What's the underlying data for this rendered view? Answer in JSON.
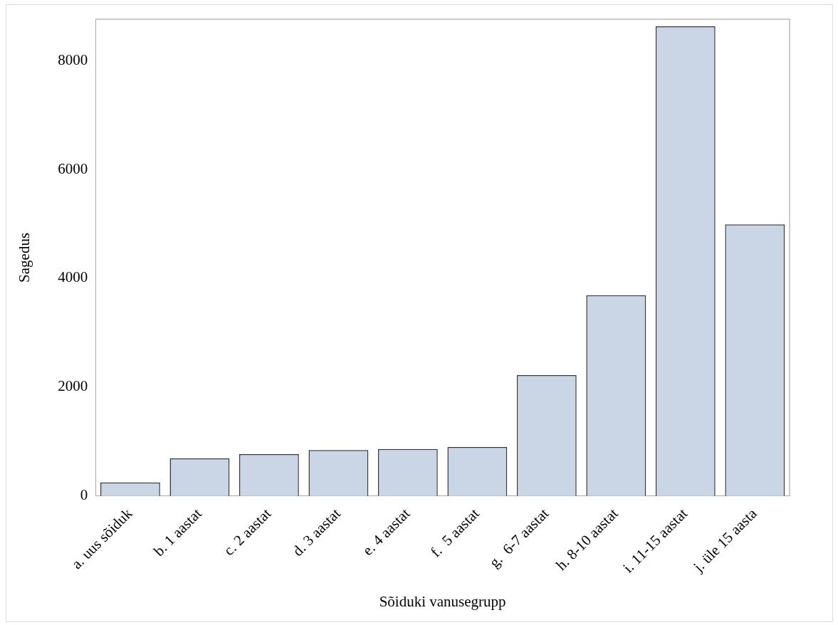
{
  "chart_data": {
    "type": "bar",
    "xlabel": "Sõiduki vanusegrupp",
    "ylabel": "Sagedus",
    "categories": [
      "a. uus sõiduk",
      "b. 1 aastat",
      "c. 2 aastat",
      "d. 3 aastat",
      "e. 4 aastat",
      "f.  5 aastat",
      "g.  6-7 aastat",
      "h. 8-10 aastat",
      "i. 11-15 aastat",
      "j. üle 15 aasta"
    ],
    "values": [
      250,
      690,
      770,
      845,
      865,
      900,
      2220,
      3690,
      8630,
      4990
    ],
    "color": "#cad5e5",
    "ylim": [
      0,
      8760
    ],
    "yticks": [
      0,
      2000,
      4000,
      6000,
      8000
    ],
    "grid": false,
    "legend": false
  }
}
